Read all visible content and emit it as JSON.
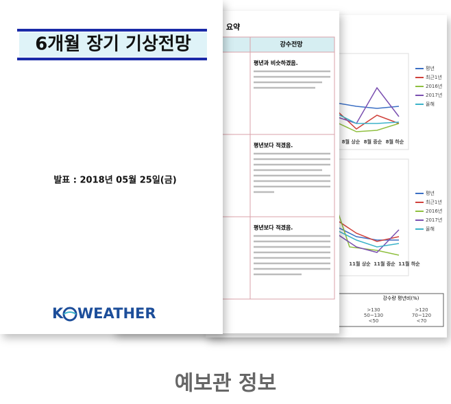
{
  "cover": {
    "title": "6개월 장기 기상전망",
    "date": "발표 : 2018년 05월 25일(금)",
    "logo_left": "K",
    "logo_right": "WEATHER"
  },
  "summary": {
    "heading": "요약",
    "column": "강수전망",
    "rows": [
      "평년과 비슷하겠음.",
      "평년보다 적겠음.",
      "평년보다 적겠음."
    ]
  },
  "charts": {
    "legend": [
      {
        "name": "평년",
        "color": "#3b6fc4"
      },
      {
        "name": "최근1년",
        "color": "#d0413b"
      },
      {
        "name": "2016년",
        "color": "#8fbf3f"
      },
      {
        "name": "2017년",
        "color": "#7a4fb0"
      },
      {
        "name": "올해",
        "color": "#3bb3c9"
      }
    ],
    "chart1_x": [
      "8월 상순",
      "8월 중순",
      "8월 하순"
    ],
    "chart2_x": [
      "11월 상순",
      "11월 중순",
      "11월 하순"
    ]
  },
  "table": {
    "title": "강수량 평년비(%)",
    "rows": [
      [
        ">130",
        ">120"
      ],
      [
        "50~130",
        "70~120"
      ],
      [
        "<50",
        "<70"
      ]
    ]
  },
  "footer": "예보관 정보"
}
